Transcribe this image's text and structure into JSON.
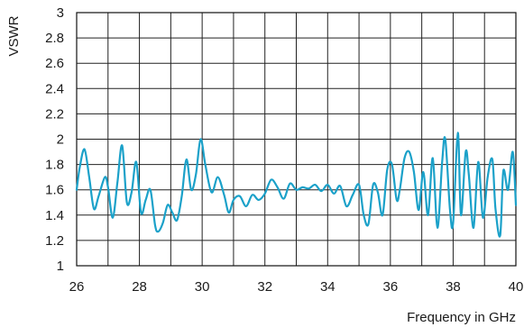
{
  "chart_data": {
    "type": "line",
    "title": "",
    "xlabel": "Frequency in GHz",
    "ylabel": "VSWR",
    "xlim": [
      26,
      40
    ],
    "ylim": [
      1,
      3
    ],
    "grid": true,
    "x_ticks": [
      "26",
      "28",
      "30",
      "32",
      "34",
      "36",
      "38",
      "40"
    ],
    "y_ticks": [
      "1",
      "1.2",
      "1.4",
      "1.6",
      "1.8",
      "2",
      "2.2",
      "2.4",
      "2.6",
      "2.8",
      "3"
    ],
    "line_color": "#1ba1c9",
    "series": [
      {
        "x": [
          26.0,
          26.1,
          26.25,
          26.4,
          26.55,
          26.7,
          26.9,
          27.0,
          27.15,
          27.3,
          27.45,
          27.6,
          27.75,
          27.9,
          28.05,
          28.2,
          28.35,
          28.5,
          28.6,
          28.75,
          28.9,
          29.05,
          29.2,
          29.35,
          29.5,
          29.65,
          29.8,
          29.95,
          30.1,
          30.3,
          30.5,
          30.7,
          30.85,
          31.0,
          31.2,
          31.4,
          31.6,
          31.8,
          32.0,
          32.2,
          32.4,
          32.6,
          32.8,
          33.0,
          33.2,
          33.4,
          33.6,
          33.8,
          34.0,
          34.2,
          34.4,
          34.6,
          34.8,
          35.0,
          35.15,
          35.3,
          35.45,
          35.6,
          35.75,
          35.9,
          36.05,
          36.2,
          36.3,
          36.45,
          36.6,
          36.75,
          36.9,
          37.05,
          37.2,
          37.35,
          37.5,
          37.65,
          37.75,
          37.9,
          38.0,
          38.15,
          38.25,
          38.4,
          38.5,
          38.65,
          38.8,
          38.95,
          39.1,
          39.25,
          39.35,
          39.5,
          39.6,
          39.75,
          39.9,
          40.0
        ],
        "values": [
          1.6,
          1.78,
          1.92,
          1.7,
          1.45,
          1.55,
          1.7,
          1.62,
          1.38,
          1.66,
          1.95,
          1.5,
          1.58,
          1.82,
          1.42,
          1.52,
          1.6,
          1.32,
          1.27,
          1.34,
          1.48,
          1.42,
          1.36,
          1.55,
          1.84,
          1.6,
          1.72,
          2.0,
          1.8,
          1.58,
          1.7,
          1.56,
          1.42,
          1.52,
          1.55,
          1.47,
          1.56,
          1.52,
          1.57,
          1.68,
          1.62,
          1.53,
          1.65,
          1.6,
          1.62,
          1.61,
          1.64,
          1.59,
          1.64,
          1.57,
          1.63,
          1.47,
          1.56,
          1.64,
          1.4,
          1.33,
          1.64,
          1.58,
          1.4,
          1.76,
          1.8,
          1.52,
          1.6,
          1.85,
          1.9,
          1.74,
          1.44,
          1.74,
          1.4,
          1.85,
          1.3,
          1.82,
          2.0,
          1.44,
          1.34,
          2.05,
          1.4,
          1.9,
          1.72,
          1.3,
          1.82,
          1.38,
          1.7,
          1.84,
          1.45,
          1.24,
          1.75,
          1.6,
          1.9,
          1.48
        ]
      }
    ]
  }
}
